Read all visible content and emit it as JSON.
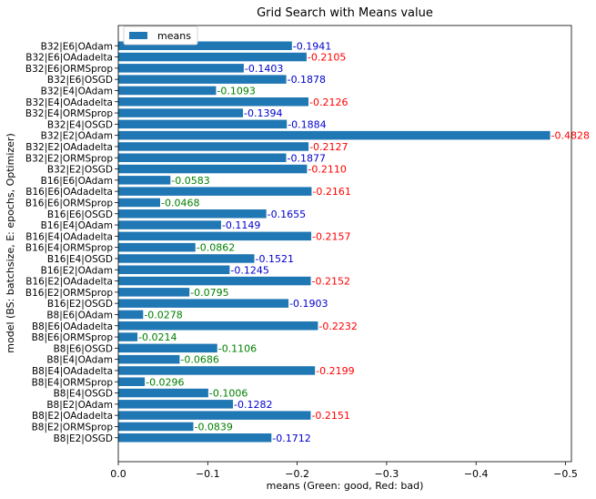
{
  "chart_data": {
    "type": "bar",
    "orientation": "horizontal",
    "title": "Grid Search with Means value",
    "xlabel": "means (Green: good, Red: bad)",
    "ylabel": "model (BS: batchsize, E: epochs, Optimizer)",
    "x_axis_inverted": true,
    "xlim": [
      0,
      -0.5
    ],
    "xticks": [
      0,
      -0.1,
      -0.2,
      -0.3,
      -0.4,
      -0.5
    ],
    "xtick_labels": [
      "0.0",
      "−0.1",
      "−0.2",
      "−0.3",
      "−0.4",
      "−0.5"
    ],
    "legend": {
      "position": "top-left",
      "entries": [
        "means"
      ]
    },
    "grid": false,
    "bar_color": "#1f77b4",
    "label_colors": {
      "good": "#008000",
      "mid": "#0000cd",
      "bad": "#ff0000"
    },
    "categories": [
      "B32|E6|OAdam",
      "B32|E6|OAdadelta",
      "B32|E6|ORMSprop",
      "B32|E6|OSGD",
      "B32|E4|OAdam",
      "B32|E4|OAdadelta",
      "B32|E4|ORMSprop",
      "B32|E4|OSGD",
      "B32|E2|OAdam",
      "B32|E2|OAdadelta",
      "B32|E2|ORMSprop",
      "B32|E2|OSGD",
      "B16|E6|OAdam",
      "B16|E6|OAdadelta",
      "B16|E6|ORMSprop",
      "B16|E6|OSGD",
      "B16|E4|OAdam",
      "B16|E4|OAdadelta",
      "B16|E4|ORMSprop",
      "B16|E4|OSGD",
      "B16|E2|OAdam",
      "B16|E2|OAdadelta",
      "B16|E2|ORMSprop",
      "B16|E2|OSGD",
      "B8|E6|OAdam",
      "B8|E6|OAdadelta",
      "B8|E6|ORMSprop",
      "B8|E6|OSGD",
      "B8|E4|OAdam",
      "B8|E4|OAdadelta",
      "B8|E4|ORMSprop",
      "B8|E4|OSGD",
      "B8|E2|OAdam",
      "B8|E2|OAdadelta",
      "B8|E2|ORMSprop",
      "B8|E2|OSGD"
    ],
    "values": [
      -0.1941,
      -0.2105,
      -0.1403,
      -0.1878,
      -0.1093,
      -0.2126,
      -0.1394,
      -0.1884,
      -0.4828,
      -0.2127,
      -0.1877,
      -0.211,
      -0.0583,
      -0.2161,
      -0.0468,
      -0.1655,
      -0.1149,
      -0.2157,
      -0.0862,
      -0.1521,
      -0.1245,
      -0.2152,
      -0.0795,
      -0.1903,
      -0.0278,
      -0.2232,
      -0.0214,
      -0.1106,
      -0.0686,
      -0.2199,
      -0.0296,
      -0.1006,
      -0.1282,
      -0.2151,
      -0.0839,
      -0.1712
    ],
    "value_labels": [
      "-0.1941",
      "-0.2105",
      "-0.1403",
      "-0.1878",
      "-0.1093",
      "-0.2126",
      "-0.1394",
      "-0.1884",
      "-0.4828",
      "-0.2127",
      "-0.1877",
      "-0.2110",
      "-0.0583",
      "-0.2161",
      "-0.0468",
      "-0.1655",
      "-0.1149",
      "-0.2157",
      "-0.0862",
      "-0.1521",
      "-0.1245",
      "-0.2152",
      "-0.0795",
      "-0.1903",
      "-0.0278",
      "-0.2232",
      "-0.0214",
      "-0.1106",
      "-0.0686",
      "-0.2199",
      "-0.0296",
      "-0.1006",
      "-0.1282",
      "-0.2151",
      "-0.0839",
      "-0.1712"
    ],
    "value_label_status": [
      "mid",
      "bad",
      "mid",
      "mid",
      "good",
      "bad",
      "mid",
      "mid",
      "bad",
      "bad",
      "mid",
      "bad",
      "good",
      "bad",
      "good",
      "mid",
      "mid",
      "bad",
      "good",
      "mid",
      "mid",
      "bad",
      "good",
      "mid",
      "good",
      "bad",
      "good",
      "good",
      "good",
      "bad",
      "good",
      "good",
      "mid",
      "bad",
      "good",
      "mid"
    ]
  }
}
